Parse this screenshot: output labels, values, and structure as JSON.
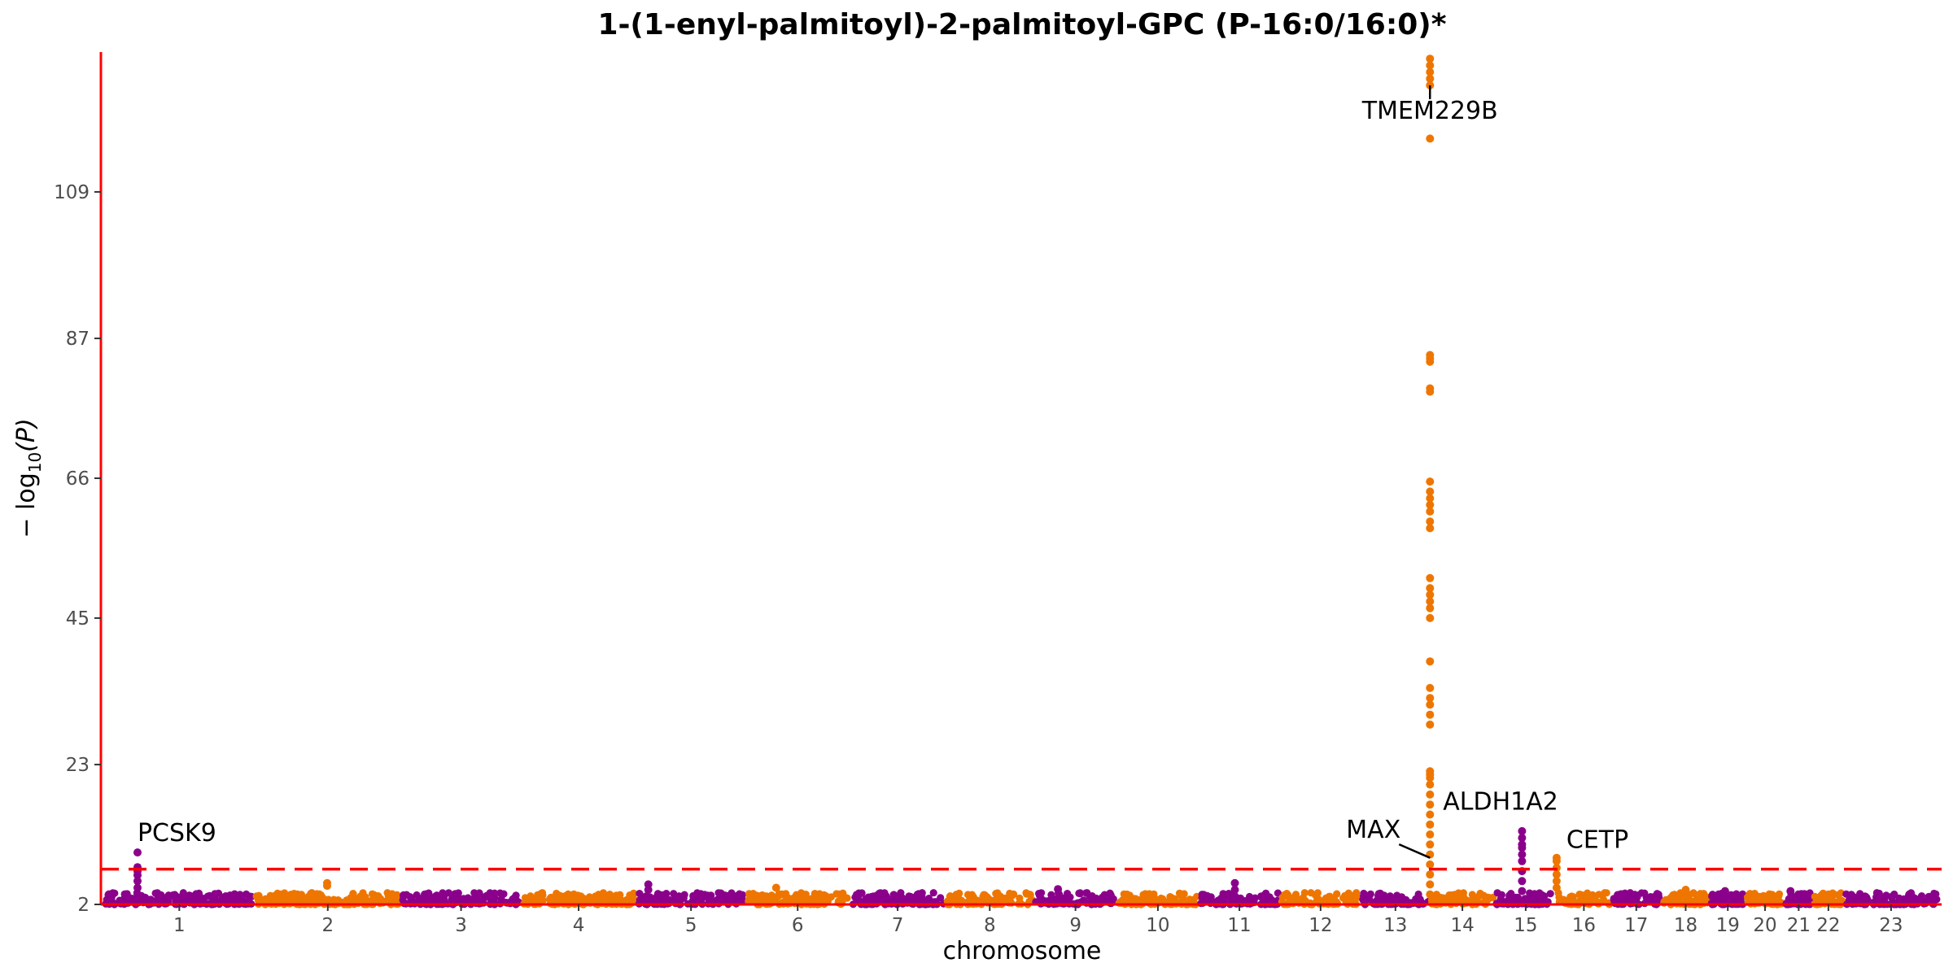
{
  "chart_data": {
    "type": "scatter",
    "subtype": "manhattan",
    "title": "1-(1-enyl-palmitoyl)-2-palmitoyl-GPC (P-16:0/16:0)*",
    "xlabel": "chromosome",
    "ylabel_prefix": "− log",
    "ylabel_sub": "10",
    "ylabel_suffix": "(P)",
    "ylim": [
      2,
      130
    ],
    "yticks": [
      2,
      23,
      45,
      66,
      87,
      109
    ],
    "significance_threshold": 7.3,
    "series_colors": [
      "#8B008B",
      "#EE7600"
    ],
    "axis_color": "#FF0000",
    "threshold_color": "#FF0000",
    "chromosomes": [
      {
        "chr": "1",
        "start": 0,
        "end": 248
      },
      {
        "chr": "2",
        "start": 248,
        "end": 490
      },
      {
        "chr": "3",
        "start": 490,
        "end": 688
      },
      {
        "chr": "4",
        "start": 688,
        "end": 878
      },
      {
        "chr": "5",
        "start": 878,
        "end": 1059
      },
      {
        "chr": "6",
        "start": 1059,
        "end": 1230
      },
      {
        "chr": "7",
        "start": 1230,
        "end": 1389
      },
      {
        "chr": "8",
        "start": 1389,
        "end": 1534
      },
      {
        "chr": "9",
        "start": 1534,
        "end": 1672
      },
      {
        "chr": "10",
        "start": 1672,
        "end": 1806
      },
      {
        "chr": "11",
        "start": 1806,
        "end": 1941
      },
      {
        "chr": "12",
        "start": 1941,
        "end": 2074
      },
      {
        "chr": "13",
        "start": 2074,
        "end": 2188
      },
      {
        "chr": "14",
        "start": 2188,
        "end": 2295
      },
      {
        "chr": "15",
        "start": 2295,
        "end": 2397
      },
      {
        "chr": "16",
        "start": 2397,
        "end": 2487
      },
      {
        "chr": "17",
        "start": 2487,
        "end": 2570
      },
      {
        "chr": "18",
        "start": 2570,
        "end": 2650
      },
      {
        "chr": "19",
        "start": 2650,
        "end": 2709
      },
      {
        "chr": "20",
        "start": 2709,
        "end": 2773
      },
      {
        "chr": "21",
        "start": 2773,
        "end": 2820
      },
      {
        "chr": "22",
        "start": 2820,
        "end": 2871
      },
      {
        "chr": "23",
        "start": 2871,
        "end": 3027
      }
    ],
    "peaks": [
      {
        "chr": "1",
        "pos": 55,
        "values": [
          3.5,
          4.5,
          5.5,
          6.4,
          7.0,
          7.6,
          9.8
        ]
      },
      {
        "chr": "2",
        "pos": 120,
        "values": [
          4.8,
          5.2
        ]
      },
      {
        "chr": "5",
        "pos": 20,
        "values": [
          4.2,
          5.0
        ]
      },
      {
        "chr": "6",
        "pos": 50,
        "values": [
          4.5
        ]
      },
      {
        "chr": "9",
        "pos": 40,
        "values": [
          4.3
        ]
      },
      {
        "chr": "11",
        "pos": 60,
        "values": [
          4.2,
          5.2
        ]
      },
      {
        "chr": "14",
        "pos": 0,
        "values": [
          3.5,
          5.0,
          6.5,
          8.0,
          9.5,
          11.0,
          12.5,
          14.0,
          15.5,
          17.0,
          18.5,
          20.0,
          21.0,
          21.5,
          22.0,
          29.0,
          30.5,
          32.0,
          33.0,
          34.5,
          38.5,
          45.0,
          46.5,
          47.5,
          48.5,
          49.5,
          51.0,
          58.5,
          59.5,
          61.0,
          62.0,
          63.0,
          64.0,
          65.5,
          79.0,
          79.5,
          83.5,
          84.0,
          84.5,
          117.0,
          125.0,
          126.0,
          127.0,
          128.0,
          129.0
        ]
      },
      {
        "chr": "15",
        "pos": 45,
        "values": [
          4.0,
          5.5,
          7.0,
          8.5,
          9.5,
          10.5,
          11.0,
          12.0,
          13.0
        ]
      },
      {
        "chr": "16",
        "pos": 0,
        "values": [
          4.5,
          5.5,
          6.5,
          7.5,
          8.5,
          9.0
        ]
      },
      {
        "chr": "18",
        "pos": 40,
        "values": [
          4.2
        ]
      },
      {
        "chr": "19",
        "pos": 25,
        "values": [
          4.0
        ]
      },
      {
        "chr": "21",
        "pos": 10,
        "values": [
          4.0
        ]
      }
    ],
    "annotations": [
      {
        "label": "PCSK9",
        "chr": "1",
        "pos": 55,
        "y": 9.8,
        "anchor": "start",
        "text_y": 11.5,
        "dx": 0,
        "leader": false
      },
      {
        "label": "TMEM229B",
        "chr": "14",
        "pos": 0,
        "y": 125.0,
        "anchor": "middle",
        "text_y": 120.0,
        "dx": 0,
        "leader": true
      },
      {
        "label": "MAX",
        "chr": "14",
        "pos": 0,
        "y": 9.0,
        "anchor": "end",
        "text_y": 12.0,
        "dx": -12,
        "leader": true
      },
      {
        "label": "ALDH1A2",
        "chr": "14",
        "pos": 0,
        "y": 16.0,
        "anchor": "start",
        "text_y": 16.2,
        "dx": 16,
        "leader": false
      },
      {
        "label": "CETP",
        "chr": "16",
        "pos": 0,
        "y": 9.0,
        "anchor": "start",
        "text_y": 10.5,
        "dx": 12,
        "leader": false
      }
    ]
  }
}
